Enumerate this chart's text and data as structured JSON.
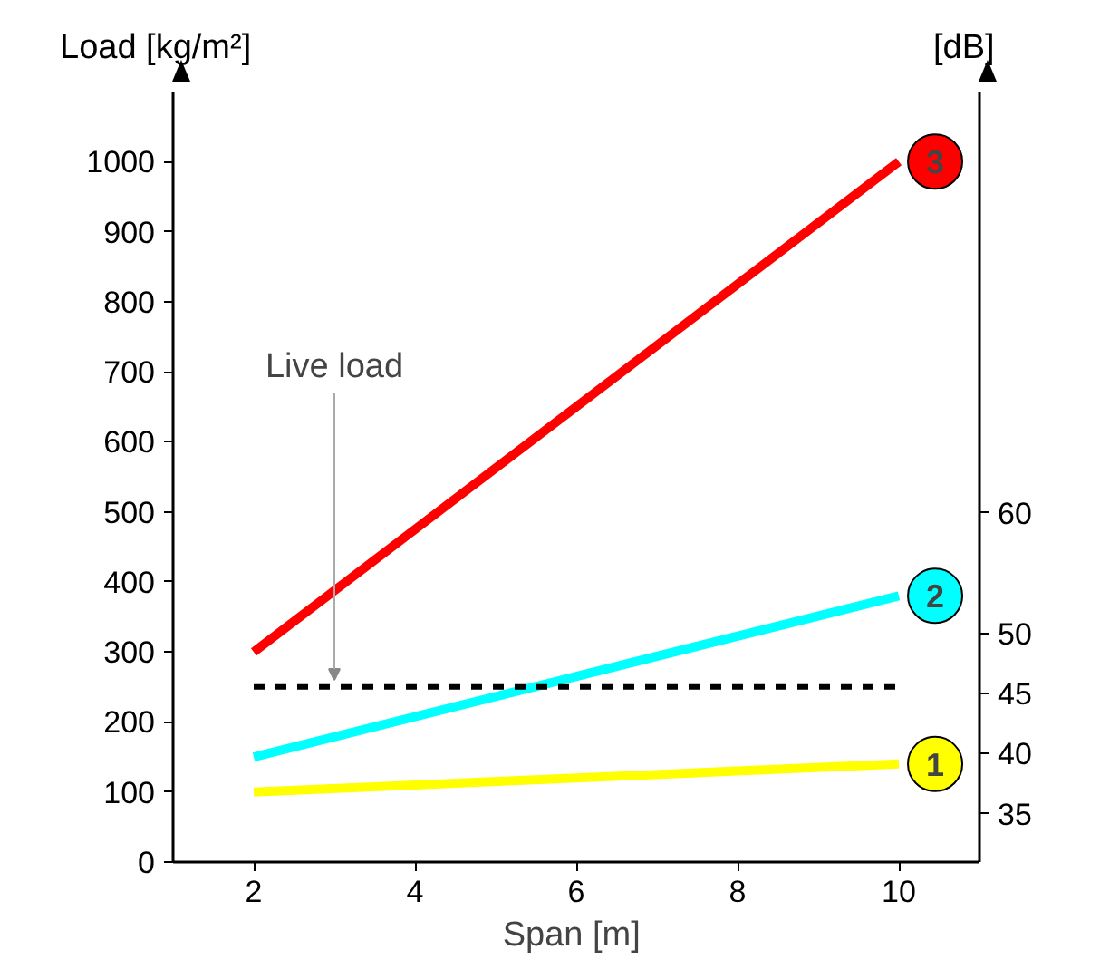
{
  "chart_data": {
    "type": "line",
    "xlabel": "Span  [m]",
    "ylabel": "Load  [kg/m²]",
    "y2label": "[dB]",
    "x": [
      2,
      10
    ],
    "xlim": [
      1,
      11
    ],
    "xticks": [
      2,
      4,
      6,
      8,
      10
    ],
    "ylim": [
      0,
      1100
    ],
    "yticks": [
      0,
      100,
      200,
      300,
      400,
      500,
      600,
      700,
      800,
      900,
      1000
    ],
    "y2lim": [
      31,
      95
    ],
    "y2ticks": [
      35,
      40,
      45,
      50,
      60
    ],
    "grid": false,
    "marker": "none",
    "line_style": "solid",
    "series": [
      {
        "name": "1",
        "color": "#ffff00",
        "values": [
          100,
          140
        ]
      },
      {
        "name": "2",
        "color": "#00ffff",
        "values": [
          150,
          380
        ]
      },
      {
        "name": "3",
        "color": "#ff0000",
        "values": [
          300,
          1000
        ]
      },
      {
        "color": "#000000",
        "line_style": "dashed",
        "values": [
          250,
          250
        ]
      }
    ],
    "annotations": [
      {
        "text": "Live load",
        "x": 3,
        "y": 250
      }
    ]
  }
}
